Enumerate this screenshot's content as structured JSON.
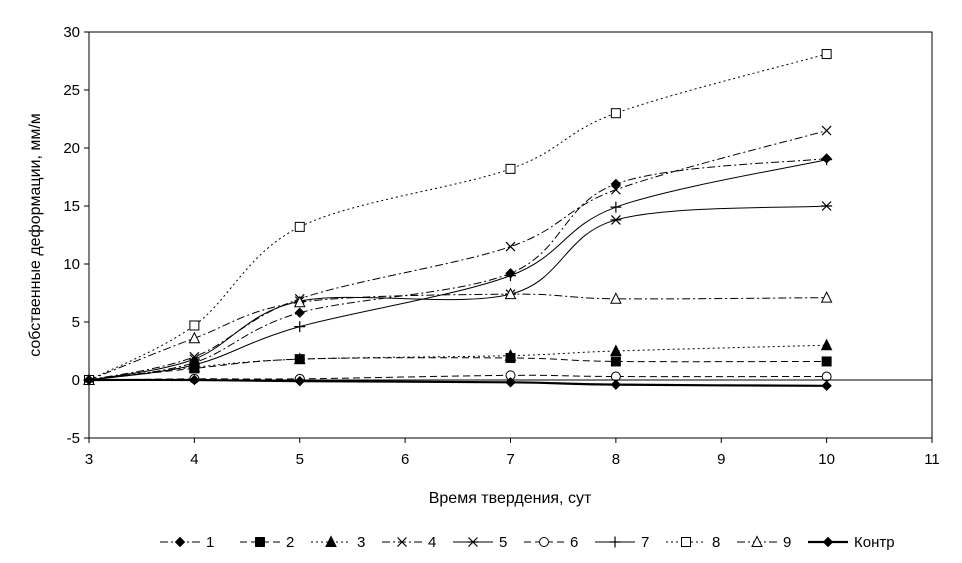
{
  "chart_data": {
    "type": "line",
    "xlabel": "Время твердения, сут",
    "ylabel": "собственные деформации, мм/м",
    "xlim": [
      3,
      11
    ],
    "ylim": [
      -5,
      30
    ],
    "xticks": [
      3,
      4,
      5,
      6,
      7,
      8,
      9,
      10,
      11
    ],
    "yticks": [
      -5,
      0,
      5,
      10,
      15,
      20,
      25,
      30
    ],
    "grid": false,
    "legend_position": "bottom",
    "x": [
      3,
      4,
      5,
      7,
      8,
      10
    ],
    "series": [
      {
        "name": "1",
        "marker": "diamond",
        "dash": "dash-dot",
        "values": [
          0,
          1.5,
          5.8,
          9.2,
          16.9,
          19.1
        ]
      },
      {
        "name": "2",
        "marker": "square",
        "dash": "dash",
        "values": [
          0,
          1.0,
          1.8,
          1.9,
          1.6,
          1.6
        ]
      },
      {
        "name": "3",
        "marker": "triangle",
        "dash": "dot",
        "values": [
          0,
          1.1,
          1.8,
          2.1,
          2.5,
          3.0
        ]
      },
      {
        "name": "4",
        "marker": "x",
        "dash": "dash-dot",
        "values": [
          0,
          2.0,
          7.0,
          11.5,
          16.4,
          21.5
        ]
      },
      {
        "name": "5",
        "marker": "star",
        "dash": "solid",
        "values": [
          0,
          1.8,
          6.8,
          7.4,
          13.8,
          15.0
        ]
      },
      {
        "name": "6",
        "marker": "circle-open",
        "dash": "dash",
        "values": [
          0,
          0.1,
          0.1,
          0.4,
          0.3,
          0.3
        ]
      },
      {
        "name": "7",
        "marker": "plus",
        "dash": "solid",
        "values": [
          0,
          1.3,
          4.6,
          9.0,
          14.9,
          19.0
        ]
      },
      {
        "name": "8",
        "marker": "square-open",
        "dash": "dot",
        "values": [
          0,
          4.7,
          13.2,
          18.2,
          23.0,
          28.1
        ]
      },
      {
        "name": "9",
        "marker": "triangle-open",
        "dash": "dash-dot",
        "values": [
          0,
          3.6,
          6.7,
          7.4,
          7.0,
          7.1
        ]
      },
      {
        "name": "Контр",
        "marker": "diamond",
        "dash": "solid-thick",
        "values": [
          0,
          0,
          -0.1,
          -0.2,
          -0.4,
          -0.5
        ]
      }
    ]
  }
}
